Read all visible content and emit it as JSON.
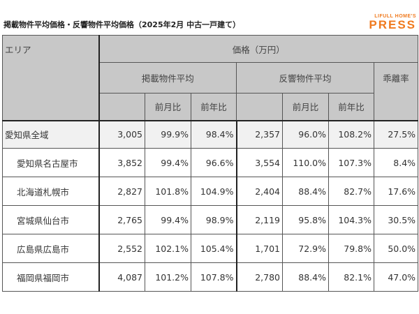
{
  "title": "掲載物件平均価格・反響物件平均価格（2025年2月 中古一戸建て）",
  "logo": {
    "line1": "LIFULL HOME'S",
    "line2": "PRESS",
    "color": "#f07a1e"
  },
  "header": {
    "area": "エリア",
    "price": "価格（万円）",
    "listed": "掲載物件平均",
    "response": "反響物件平均",
    "gap": "乖離率",
    "mom": "前月比",
    "yoy": "前年比"
  },
  "rows": [
    {
      "area": "愛知県全域",
      "listed": "3,005",
      "listed_mom": "99.9%",
      "listed_yoy": "98.4%",
      "resp": "2,357",
      "resp_mom": "96.0%",
      "resp_yoy": "108.2%",
      "gap": "27.5%"
    },
    {
      "area": "愛知県名古屋市",
      "listed": "3,852",
      "listed_mom": "99.4%",
      "listed_yoy": "96.6%",
      "resp": "3,554",
      "resp_mom": "110.0%",
      "resp_yoy": "107.3%",
      "gap": "8.4%"
    },
    {
      "area": "北海道札幌市",
      "listed": "2,827",
      "listed_mom": "101.8%",
      "listed_yoy": "104.9%",
      "resp": "2,404",
      "resp_mom": "88.4%",
      "resp_yoy": "82.7%",
      "gap": "17.6%"
    },
    {
      "area": "宮城県仙台市",
      "listed": "2,765",
      "listed_mom": "99.4%",
      "listed_yoy": "98.9%",
      "resp": "2,119",
      "resp_mom": "95.8%",
      "resp_yoy": "104.3%",
      "gap": "30.5%"
    },
    {
      "area": "広島県広島市",
      "listed": "2,552",
      "listed_mom": "102.1%",
      "listed_yoy": "105.4%",
      "resp": "1,701",
      "resp_mom": "72.9%",
      "resp_yoy": "79.8%",
      "gap": "50.0%"
    },
    {
      "area": "福岡県福岡市",
      "listed": "4,087",
      "listed_mom": "101.2%",
      "listed_yoy": "107.8%",
      "resp": "2,780",
      "resp_mom": "88.4%",
      "resp_yoy": "82.1%",
      "gap": "47.0%"
    }
  ]
}
